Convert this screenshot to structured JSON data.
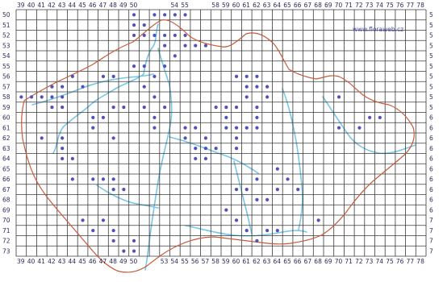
{
  "watermark": "www.floraweb.cz",
  "grid": {
    "columns": [
      39,
      40,
      41,
      42,
      43,
      44,
      45,
      46,
      47,
      48,
      49,
      50,
      51,
      52,
      53,
      54,
      55,
      56,
      57,
      58,
      59,
      60,
      61,
      62,
      63,
      64,
      65,
      66,
      67,
      68,
      69,
      70,
      71,
      72,
      73,
      74,
      75,
      76,
      77,
      78
    ],
    "rows": [
      50,
      51,
      52,
      53,
      54,
      55,
      56,
      57,
      58,
      59,
      60,
      61,
      62,
      63,
      64,
      65,
      66,
      67,
      68,
      69,
      70,
      71,
      72,
      73
    ],
    "top_labels": [
      "39",
      "40",
      "41",
      "42",
      "43",
      "44",
      "45",
      "46",
      "47",
      "48",
      "49",
      "50",
      "",
      "",
      "",
      "54",
      "55",
      "",
      "",
      "58",
      "59",
      "60",
      "61",
      "62",
      "63",
      "64",
      "65",
      "66",
      "67",
      "68",
      "69",
      "70",
      "71",
      "72",
      "73",
      "74",
      "75",
      "76",
      "77",
      "78"
    ],
    "bottom_labels": [
      "39",
      "40",
      "41",
      "42",
      "43",
      "44",
      "45",
      "46",
      "47",
      "48",
      "49",
      "50",
      "",
      "",
      "53",
      "54",
      "55",
      "56",
      "57",
      "58",
      "59",
      "60",
      "61",
      "62",
      "63",
      "64",
      "65",
      "66",
      "67",
      "68",
      "69",
      "70",
      "71",
      "72",
      "73",
      "74",
      "75",
      "76",
      "77",
      "78"
    ],
    "left_labels": [
      "50",
      "51",
      "52",
      "53",
      "54",
      "55",
      "56",
      "57",
      "58",
      "59",
      "60",
      "61",
      "62",
      "63",
      "64",
      "65",
      "66",
      "67",
      "68",
      "69",
      "70",
      "71",
      "72",
      "73"
    ],
    "right_labels": [
      "5",
      "5",
      "5",
      "5",
      "5",
      "5",
      "5",
      "5",
      "5",
      "5",
      "6",
      "6",
      "6",
      "6",
      "6",
      "6",
      "6",
      "6",
      "6",
      "6",
      "7",
      "7",
      "7",
      "7"
    ]
  },
  "occurrences": [
    [
      50,
      50
    ],
    [
      52,
      50
    ],
    [
      53,
      50
    ],
    [
      54,
      50
    ],
    [
      55,
      50
    ],
    [
      50,
      51
    ],
    [
      51,
      51
    ],
    [
      51,
      52
    ],
    [
      50,
      52
    ],
    [
      52,
      52
    ],
    [
      53,
      52
    ],
    [
      54,
      52
    ],
    [
      55,
      52
    ],
    [
      53,
      53
    ],
    [
      55,
      53
    ],
    [
      54,
      54
    ],
    [
      56,
      53
    ],
    [
      57,
      53
    ],
    [
      50,
      55
    ],
    [
      51,
      55
    ],
    [
      53,
      55
    ],
    [
      52,
      56
    ],
    [
      44,
      56
    ],
    [
      47,
      56
    ],
    [
      48,
      56
    ],
    [
      45,
      57
    ],
    [
      42,
      57
    ],
    [
      43,
      57
    ],
    [
      39,
      58
    ],
    [
      40,
      58
    ],
    [
      41,
      58
    ],
    [
      42,
      58
    ],
    [
      43,
      58
    ],
    [
      42,
      59
    ],
    [
      43,
      59
    ],
    [
      47,
      60
    ],
    [
      48,
      59
    ],
    [
      49,
      59
    ],
    [
      46,
      61
    ],
    [
      46,
      60
    ],
    [
      51,
      57
    ],
    [
      52,
      58
    ],
    [
      51,
      59
    ],
    [
      52,
      60
    ],
    [
      52,
      61
    ],
    [
      53,
      59
    ],
    [
      58,
      59
    ],
    [
      59,
      59
    ],
    [
      60,
      59
    ],
    [
      61,
      58
    ],
    [
      62,
      57
    ],
    [
      61,
      57
    ],
    [
      60,
      56
    ],
    [
      61,
      56
    ],
    [
      62,
      56
    ],
    [
      63,
      57
    ],
    [
      62,
      59
    ],
    [
      63,
      58
    ],
    [
      59,
      60
    ],
    [
      59,
      61
    ],
    [
      60,
      61
    ],
    [
      61,
      61
    ],
    [
      60,
      62
    ],
    [
      60,
      63
    ],
    [
      62,
      60
    ],
    [
      62,
      61
    ],
    [
      55,
      61
    ],
    [
      56,
      61
    ],
    [
      57,
      62
    ],
    [
      56,
      63
    ],
    [
      57,
      63
    ],
    [
      55,
      62
    ],
    [
      56,
      64
    ],
    [
      58,
      63
    ],
    [
      57,
      64
    ],
    [
      41,
      62
    ],
    [
      43,
      62
    ],
    [
      43,
      63
    ],
    [
      43,
      64
    ],
    [
      44,
      64
    ],
    [
      48,
      62
    ],
    [
      44,
      66
    ],
    [
      46,
      66
    ],
    [
      47,
      66
    ],
    [
      48,
      66
    ],
    [
      48,
      67
    ],
    [
      49,
      67
    ],
    [
      60,
      67
    ],
    [
      61,
      67
    ],
    [
      62,
      68
    ],
    [
      63,
      68
    ],
    [
      64,
      67
    ],
    [
      65,
      66
    ],
    [
      66,
      67
    ],
    [
      64,
      65
    ],
    [
      62,
      66
    ],
    [
      59,
      69
    ],
    [
      60,
      70
    ],
    [
      61,
      71
    ],
    [
      62,
      72
    ],
    [
      63,
      71
    ],
    [
      64,
      71
    ],
    [
      45,
      70
    ],
    [
      46,
      71
    ],
    [
      47,
      70
    ],
    [
      48,
      71
    ],
    [
      48,
      72
    ],
    [
      49,
      73
    ],
    [
      50,
      72
    ],
    [
      50,
      73
    ],
    [
      49,
      74
    ],
    [
      70,
      58
    ],
    [
      72,
      61
    ],
    [
      73,
      60
    ],
    [
      74,
      60
    ],
    [
      70,
      61
    ],
    [
      68,
      70
    ]
  ],
  "colors": {
    "border": "#c65a3a",
    "river": "#78c6e6",
    "grid": "#3a3a3a",
    "dot": "#5151b8",
    "label": "#2b2b5a"
  }
}
